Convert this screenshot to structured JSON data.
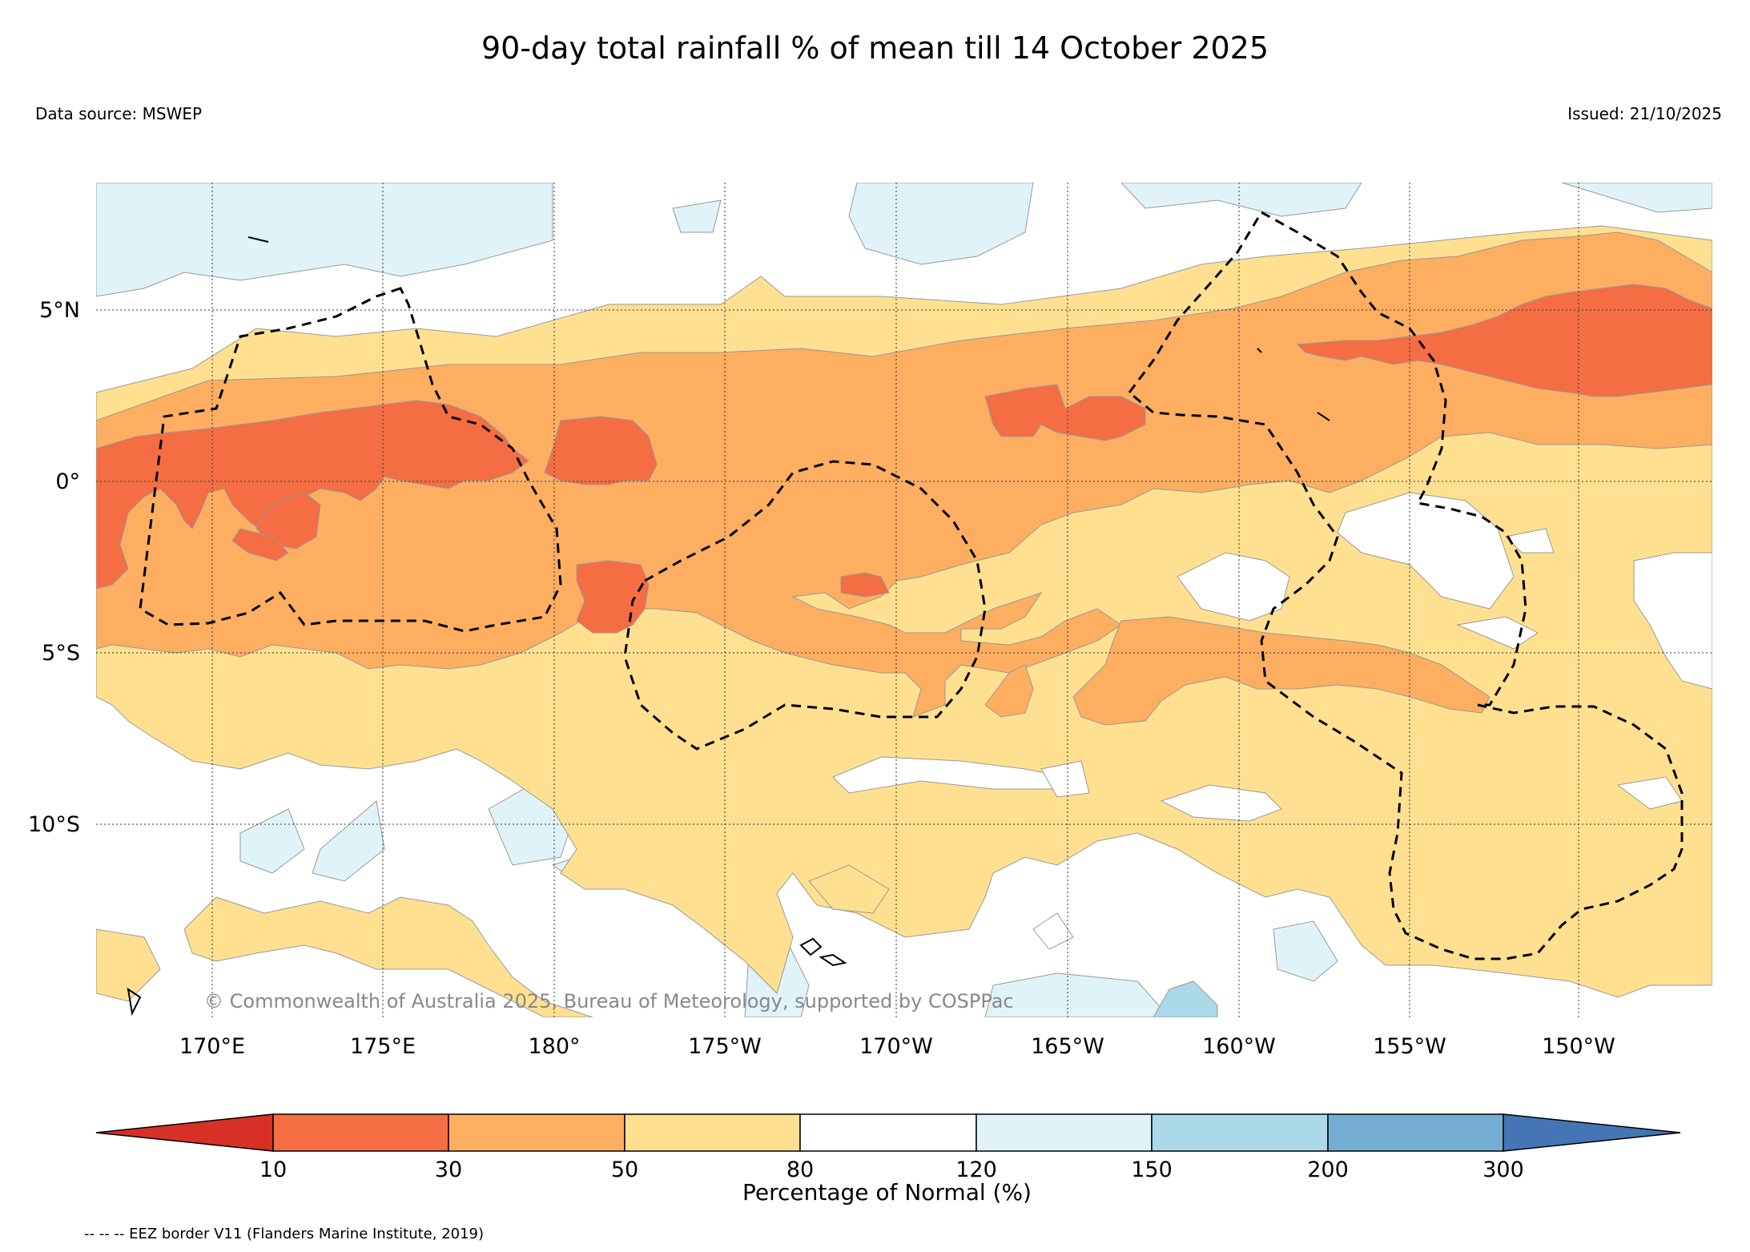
{
  "title": "90-day total rainfall % of mean till 14 October 2025",
  "data_source": "Data source: MSWEP",
  "issued": "Issued: 21/10/2025",
  "copyright": "© Commonwealth of Australia 2025, Bureau of Meteorology, supported by COSPPac",
  "footnote": "-- -- -- EEZ border V11 (Flanders Marine Institute, 2019)",
  "map": {
    "lon_labels": [
      "170°E",
      "175°E",
      "180°",
      "175°W",
      "170°W",
      "165°W",
      "160°W",
      "155°W",
      "150°W"
    ],
    "lat_labels": [
      "5°N",
      "0°",
      "5°S",
      "10°S"
    ],
    "extent": {
      "lon_min_east": 166.6,
      "lon_max_east": 213.6,
      "lat_min": -15.9,
      "lat_max": 8.5
    }
  },
  "colorbar": {
    "title": "Percentage of Normal (%)",
    "tick_labels": [
      "10",
      "30",
      "50",
      "80",
      "120",
      "150",
      "200",
      "300"
    ],
    "colors": [
      "#d73027",
      "#f46d43",
      "#fdae61",
      "#fee090",
      "#ffffff",
      "#e0f3f8",
      "#abd9e9",
      "#74add1",
      "#4575b4"
    ]
  }
}
